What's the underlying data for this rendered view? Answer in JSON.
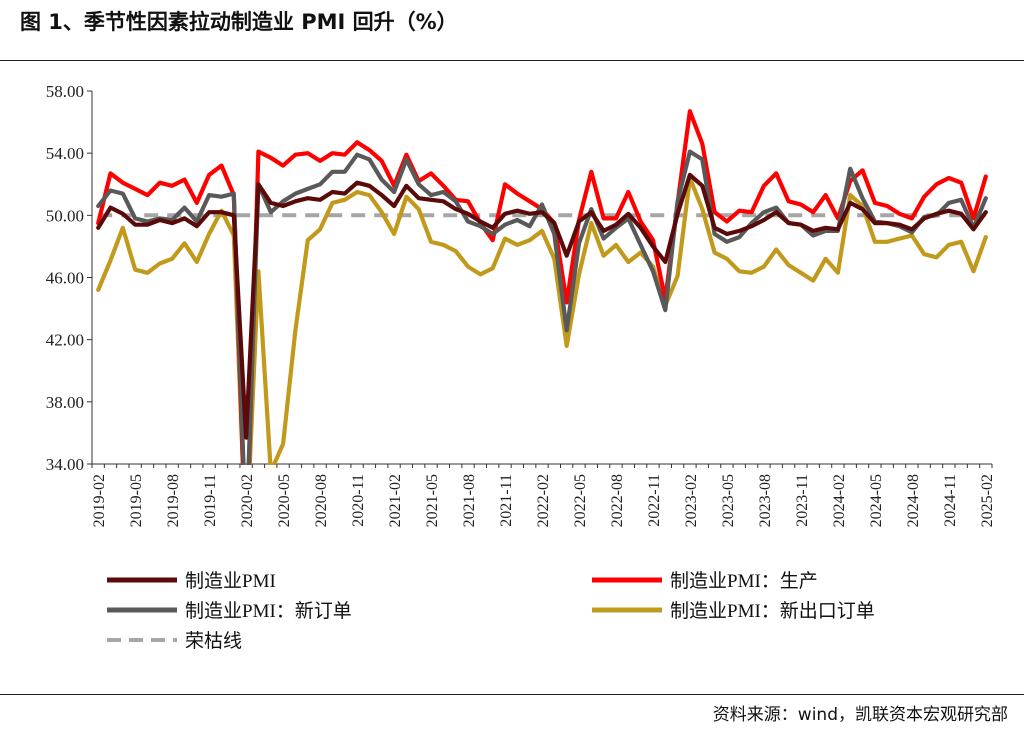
{
  "title": "图 1、季节性因素拉动制造业 PMI 回升（%）",
  "source": "资料来源：wind，凯联资本宏观研究部",
  "chart_data": {
    "type": "line",
    "title": "图 1、季节性因素拉动制造业 PMI 回升（%）",
    "ylim": [
      34,
      58
    ],
    "yticks": [
      "34.00",
      "38.00",
      "42.00",
      "46.00",
      "50.00",
      "54.00",
      "58.00"
    ],
    "xtick_labels": [
      "2019-02",
      "2019-05",
      "2019-08",
      "2019-11",
      "2020-02",
      "2020-05",
      "2020-08",
      "2020-11",
      "2021-02",
      "2021-05",
      "2021-08",
      "2021-11",
      "2022-02",
      "2022-05",
      "2022-08",
      "2022-11",
      "2023-02",
      "2023-05",
      "2023-08",
      "2023-11",
      "2024-02",
      "2024-05",
      "2024-08",
      "2024-11",
      "2025-02"
    ],
    "legend_placement": "bottom",
    "categories": [
      "2019-02",
      "2019-03",
      "2019-04",
      "2019-05",
      "2019-06",
      "2019-07",
      "2019-08",
      "2019-09",
      "2019-10",
      "2019-11",
      "2019-12",
      "2020-01",
      "2020-02",
      "2020-03",
      "2020-04",
      "2020-05",
      "2020-06",
      "2020-07",
      "2020-08",
      "2020-09",
      "2020-10",
      "2020-11",
      "2020-12",
      "2021-01",
      "2021-02",
      "2021-03",
      "2021-04",
      "2021-05",
      "2021-06",
      "2021-07",
      "2021-08",
      "2021-09",
      "2021-10",
      "2021-11",
      "2021-12",
      "2022-01",
      "2022-02",
      "2022-03",
      "2022-04",
      "2022-05",
      "2022-06",
      "2022-07",
      "2022-08",
      "2022-09",
      "2022-10",
      "2022-11",
      "2022-12",
      "2023-01",
      "2023-02",
      "2023-03",
      "2023-04",
      "2023-05",
      "2023-06",
      "2023-07",
      "2023-08",
      "2023-09",
      "2023-10",
      "2023-11",
      "2023-12",
      "2024-01",
      "2024-02",
      "2024-03",
      "2024-04",
      "2024-05",
      "2024-06",
      "2024-07",
      "2024-08",
      "2024-09",
      "2024-10",
      "2024-11",
      "2024-12",
      "2025-01",
      "2025-02"
    ],
    "series": [
      {
        "name": "制造业PMI",
        "color": "#5b0a0a",
        "values": [
          49.2,
          50.5,
          50.1,
          49.4,
          49.4,
          49.7,
          49.5,
          49.8,
          49.3,
          50.2,
          50.2,
          50.0,
          35.7,
          52.0,
          50.8,
          50.6,
          50.9,
          51.1,
          51.0,
          51.5,
          51.4,
          52.1,
          51.9,
          51.3,
          50.6,
          51.9,
          51.1,
          51.0,
          50.9,
          50.4,
          50.1,
          49.6,
          49.2,
          50.1,
          50.3,
          50.1,
          50.2,
          49.5,
          47.4,
          49.6,
          50.2,
          49.0,
          49.4,
          50.1,
          49.2,
          48.0,
          47.0,
          50.1,
          52.6,
          51.9,
          49.2,
          48.8,
          49.0,
          49.3,
          49.7,
          50.2,
          49.5,
          49.4,
          49.0,
          49.2,
          49.1,
          50.8,
          50.4,
          49.5,
          49.5,
          49.4,
          49.1,
          49.8,
          50.1,
          50.3,
          50.1,
          49.1,
          50.2
        ]
      },
      {
        "name": "制造业PMI：生产",
        "color": "#ff0000",
        "values": [
          49.5,
          52.7,
          52.1,
          51.7,
          51.3,
          52.1,
          51.9,
          52.3,
          50.8,
          52.6,
          53.2,
          51.3,
          27.8,
          54.1,
          53.7,
          53.2,
          53.9,
          54.0,
          53.5,
          54.0,
          53.9,
          54.7,
          54.2,
          53.5,
          51.9,
          53.9,
          52.2,
          52.7,
          51.9,
          51.0,
          50.9,
          49.5,
          48.4,
          52.0,
          51.4,
          50.9,
          50.4,
          49.5,
          44.4,
          49.7,
          52.8,
          49.8,
          49.8,
          51.5,
          49.6,
          48.4,
          44.6,
          50.8,
          56.7,
          54.6,
          50.2,
          49.6,
          50.3,
          50.2,
          51.9,
          52.7,
          50.9,
          50.7,
          50.2,
          51.3,
          49.8,
          52.2,
          52.9,
          50.8,
          50.6,
          50.1,
          49.8,
          51.2,
          52.0,
          52.4,
          52.1,
          49.8,
          52.5
        ]
      },
      {
        "name": "制造业PMI：新订单",
        "color": "#595959",
        "values": [
          50.6,
          51.6,
          51.4,
          49.8,
          49.6,
          49.8,
          49.7,
          50.5,
          49.6,
          51.3,
          51.2,
          51.4,
          29.3,
          52.0,
          50.2,
          50.9,
          51.4,
          51.7,
          52.0,
          52.8,
          52.8,
          53.9,
          53.6,
          52.3,
          51.5,
          53.6,
          52.0,
          51.3,
          51.5,
          50.9,
          49.6,
          49.3,
          48.8,
          49.4,
          49.7,
          49.3,
          50.7,
          48.8,
          42.6,
          48.2,
          50.4,
          48.5,
          49.2,
          49.8,
          48.1,
          46.4,
          43.9,
          50.9,
          54.1,
          53.6,
          48.8,
          48.3,
          48.6,
          49.5,
          50.2,
          50.5,
          49.5,
          49.4,
          48.7,
          49.0,
          49.0,
          53.0,
          51.1,
          49.6,
          49.5,
          49.3,
          48.9,
          49.9,
          50.0,
          50.8,
          51.0,
          49.2,
          51.1
        ]
      },
      {
        "name": "制造业PMI：新出口订单",
        "color": "#c19a1b",
        "values": [
          45.2,
          47.1,
          49.2,
          46.5,
          46.3,
          46.9,
          47.2,
          48.2,
          47.0,
          48.8,
          50.3,
          48.7,
          28.7,
          46.4,
          33.5,
          35.3,
          42.6,
          48.4,
          49.1,
          50.8,
          51.0,
          51.5,
          51.3,
          50.2,
          48.8,
          51.2,
          50.4,
          48.3,
          48.1,
          47.7,
          46.7,
          46.2,
          46.6,
          48.5,
          48.1,
          48.4,
          49.0,
          47.2,
          41.6,
          46.2,
          49.5,
          47.4,
          48.1,
          47.0,
          47.6,
          46.7,
          44.2,
          46.1,
          52.4,
          50.4,
          47.6,
          47.2,
          46.4,
          46.3,
          46.7,
          47.8,
          46.8,
          46.3,
          45.8,
          47.2,
          46.3,
          51.3,
          50.6,
          48.3,
          48.3,
          48.5,
          48.7,
          47.5,
          47.3,
          48.1,
          48.3,
          46.4,
          48.6
        ]
      },
      {
        "name": "荣枯线",
        "color": "#a6a6a6",
        "dashed": true,
        "values": [
          50,
          50,
          50,
          50,
          50,
          50,
          50,
          50,
          50,
          50,
          50,
          50,
          50,
          50,
          50,
          50,
          50,
          50,
          50,
          50,
          50,
          50,
          50,
          50,
          50,
          50,
          50,
          50,
          50,
          50,
          50,
          50,
          50,
          50,
          50,
          50,
          50,
          50,
          50,
          50,
          50,
          50,
          50,
          50,
          50,
          50,
          50,
          50,
          50,
          50,
          50,
          50,
          50,
          50,
          50,
          50,
          50,
          50,
          50,
          50,
          50,
          50,
          50,
          50,
          50,
          50,
          50,
          50,
          50,
          50,
          50,
          50,
          50
        ]
      }
    ]
  }
}
